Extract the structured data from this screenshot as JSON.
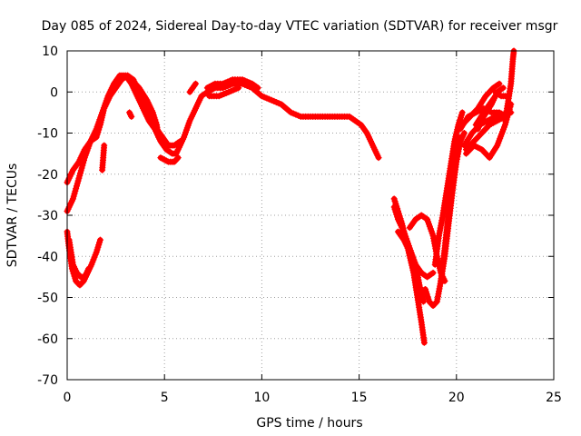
{
  "chart_data": {
    "type": "scatter",
    "title": "Day 085 of 2024, Sidereal Day-to-day VTEC variation (SDTVAR) for receiver msgr",
    "xlabel": "GPS time / hours",
    "ylabel": "SDTVAR / TECUs",
    "xlim": [
      0,
      25
    ],
    "ylim": [
      -70,
      10
    ],
    "xticks": [
      0,
      5,
      10,
      15,
      20,
      25
    ],
    "yticks": [
      10,
      0,
      -10,
      -20,
      -30,
      -40,
      -50,
      -60,
      -70
    ],
    "grid": true,
    "marker": "plus",
    "color": "#ff0000",
    "series": [
      {
        "points": [
          [
            0.0,
            -29
          ],
          [
            0.3,
            -26
          ],
          [
            0.6,
            -21
          ],
          [
            0.9,
            -16
          ],
          [
            1.2,
            -12
          ],
          [
            1.5,
            -9
          ],
          [
            1.8,
            -5
          ],
          [
            2.1,
            -1
          ],
          [
            2.4,
            2
          ],
          [
            2.7,
            4
          ],
          [
            3.0,
            4
          ],
          [
            3.3,
            2
          ],
          [
            3.6,
            -1
          ],
          [
            3.9,
            -4
          ],
          [
            4.2,
            -7
          ],
          [
            4.5,
            -9
          ],
          [
            4.8,
            -12
          ],
          [
            5.1,
            -14
          ],
          [
            5.4,
            -15
          ],
          [
            5.6,
            -15
          ],
          [
            5.8,
            -13
          ],
          [
            6.0,
            -11
          ],
          [
            6.3,
            -7
          ],
          [
            6.6,
            -4
          ],
          [
            6.9,
            -1
          ],
          [
            7.2,
            0
          ],
          [
            7.6,
            1
          ],
          [
            8.0,
            1
          ],
          [
            8.5,
            2
          ],
          [
            9.0,
            2
          ],
          [
            9.5,
            1
          ],
          [
            10.0,
            -1
          ],
          [
            10.5,
            -2
          ],
          [
            11.0,
            -3
          ],
          [
            11.5,
            -5
          ],
          [
            12.0,
            -6
          ],
          [
            12.5,
            -6
          ],
          [
            13.0,
            -6
          ],
          [
            13.5,
            -6
          ],
          [
            14.0,
            -6
          ],
          [
            14.5,
            -6
          ],
          [
            14.8,
            -7
          ],
          [
            15.1,
            -8
          ],
          [
            15.4,
            -10
          ],
          [
            15.7,
            -13
          ],
          [
            16.0,
            -16
          ]
        ]
      },
      {
        "points": [
          [
            0.0,
            -22
          ],
          [
            0.3,
            -19
          ],
          [
            0.6,
            -17
          ],
          [
            0.9,
            -14
          ],
          [
            1.2,
            -12
          ],
          [
            1.5,
            -11
          ],
          [
            1.7,
            -8
          ],
          [
            1.9,
            -4
          ],
          [
            2.2,
            -1
          ],
          [
            2.5,
            1
          ],
          [
            2.8,
            3
          ],
          [
            3.1,
            4
          ],
          [
            3.4,
            3
          ],
          [
            3.7,
            0
          ],
          [
            4.0,
            -3
          ],
          [
            4.3,
            -6
          ],
          [
            4.6,
            -9
          ],
          [
            4.9,
            -11
          ],
          [
            5.2,
            -13
          ],
          [
            5.5,
            -13
          ],
          [
            5.8,
            -12
          ]
        ]
      },
      {
        "points": [
          [
            0.0,
            -34
          ],
          [
            0.1,
            -38
          ],
          [
            0.25,
            -43
          ],
          [
            0.45,
            -46
          ],
          [
            0.65,
            -47
          ],
          [
            0.85,
            -46
          ],
          [
            1.05,
            -44
          ],
          [
            1.25,
            -42
          ],
          [
            1.5,
            -39
          ],
          [
            1.7,
            -36
          ]
        ]
      },
      {
        "points": [
          [
            0.1,
            -36
          ],
          [
            0.3,
            -42
          ],
          [
            0.5,
            -44
          ],
          [
            0.7,
            -45
          ],
          [
            0.9,
            -45
          ],
          [
            1.1,
            -43
          ]
        ]
      },
      {
        "points": [
          [
            1.8,
            -19
          ],
          [
            1.85,
            -16
          ],
          [
            1.9,
            -13
          ]
        ]
      },
      {
        "points": [
          [
            3.2,
            -5
          ],
          [
            3.3,
            -6
          ]
        ]
      },
      {
        "points": [
          [
            3.3,
            3
          ],
          [
            3.7,
            1
          ],
          [
            4.1,
            -2
          ],
          [
            4.4,
            -5
          ],
          [
            4.6,
            -8
          ],
          [
            4.7,
            -11
          ]
        ]
      },
      {
        "points": [
          [
            4.8,
            -16
          ],
          [
            5.2,
            -17
          ],
          [
            5.5,
            -17
          ],
          [
            5.7,
            -16
          ]
        ]
      },
      {
        "points": [
          [
            6.3,
            0
          ],
          [
            6.6,
            2
          ]
        ]
      },
      {
        "points": [
          [
            7.2,
            1
          ],
          [
            7.6,
            2
          ],
          [
            8.0,
            2
          ],
          [
            8.5,
            3
          ],
          [
            9.0,
            3
          ],
          [
            9.5,
            2
          ],
          [
            9.8,
            1
          ]
        ]
      },
      {
        "points": [
          [
            7.3,
            -1
          ],
          [
            7.8,
            -1
          ],
          [
            8.3,
            0
          ],
          [
            8.8,
            1
          ]
        ]
      },
      {
        "points": [
          [
            16.8,
            -26
          ],
          [
            17.2,
            -32
          ],
          [
            17.5,
            -38
          ],
          [
            17.8,
            -44
          ],
          [
            18.0,
            -50
          ],
          [
            18.2,
            -56
          ],
          [
            18.35,
            -61
          ]
        ]
      },
      {
        "points": [
          [
            16.8,
            -28
          ],
          [
            17.0,
            -31
          ],
          [
            17.3,
            -34
          ],
          [
            17.6,
            -38
          ],
          [
            17.9,
            -42
          ],
          [
            18.1,
            -47
          ],
          [
            18.3,
            -51
          ]
        ]
      },
      {
        "points": [
          [
            17.0,
            -34
          ],
          [
            17.3,
            -36
          ],
          [
            17.6,
            -39
          ],
          [
            17.9,
            -42
          ],
          [
            18.2,
            -44
          ],
          [
            18.5,
            -45
          ],
          [
            18.8,
            -44
          ]
        ]
      },
      {
        "points": [
          [
            17.6,
            -33
          ],
          [
            17.9,
            -31
          ],
          [
            18.2,
            -30
          ],
          [
            18.5,
            -31
          ],
          [
            18.8,
            -35
          ],
          [
            19.0,
            -40
          ],
          [
            19.2,
            -44
          ],
          [
            19.4,
            -46
          ]
        ]
      },
      {
        "points": [
          [
            18.4,
            -48
          ],
          [
            18.6,
            -51
          ],
          [
            18.8,
            -52
          ],
          [
            19.0,
            -51
          ],
          [
            19.2,
            -46
          ],
          [
            19.4,
            -38
          ],
          [
            19.6,
            -29
          ],
          [
            19.8,
            -22
          ],
          [
            20.0,
            -16
          ],
          [
            20.2,
            -11
          ]
        ]
      },
      {
        "points": [
          [
            18.9,
            -42
          ],
          [
            19.1,
            -35
          ],
          [
            19.3,
            -30
          ],
          [
            19.5,
            -24
          ],
          [
            19.7,
            -18
          ],
          [
            19.9,
            -12
          ],
          [
            20.1,
            -8
          ],
          [
            20.3,
            -5
          ]
        ]
      },
      {
        "points": [
          [
            19.2,
            -46
          ],
          [
            19.4,
            -40
          ],
          [
            19.6,
            -32
          ],
          [
            19.8,
            -24
          ],
          [
            20.0,
            -17
          ],
          [
            20.2,
            -12
          ],
          [
            20.4,
            -10
          ]
        ]
      },
      {
        "points": [
          [
            20.2,
            -9
          ],
          [
            20.6,
            -6
          ],
          [
            21.0,
            -5
          ],
          [
            21.4,
            -4
          ],
          [
            21.8,
            -5
          ],
          [
            22.2,
            -5
          ],
          [
            22.6,
            -6
          ]
        ]
      },
      {
        "points": [
          [
            20.4,
            -13
          ],
          [
            20.8,
            -10
          ],
          [
            21.2,
            -8
          ],
          [
            21.6,
            -7
          ],
          [
            22.0,
            -6
          ],
          [
            22.4,
            -6
          ],
          [
            22.8,
            -5
          ]
        ]
      },
      {
        "points": [
          [
            20.5,
            -14
          ],
          [
            20.9,
            -12
          ],
          [
            21.3,
            -10
          ],
          [
            21.7,
            -8
          ],
          [
            22.1,
            -7
          ],
          [
            22.5,
            -6
          ]
        ]
      },
      {
        "points": [
          [
            20.5,
            -15
          ],
          [
            20.9,
            -13
          ],
          [
            21.3,
            -14
          ],
          [
            21.7,
            -16
          ],
          [
            22.1,
            -13
          ],
          [
            22.5,
            -8
          ],
          [
            22.8,
            -3
          ]
        ]
      },
      {
        "points": [
          [
            21.0,
            -8
          ],
          [
            21.4,
            -5
          ],
          [
            21.7,
            -3
          ],
          [
            22.0,
            -1
          ]
        ]
      },
      {
        "points": [
          [
            20.3,
            -8
          ],
          [
            20.7,
            -6
          ],
          [
            21.1,
            -4
          ],
          [
            21.5,
            -1
          ],
          [
            21.9,
            1
          ],
          [
            22.2,
            2
          ]
        ]
      },
      {
        "points": [
          [
            21.1,
            -9
          ],
          [
            21.4,
            -6
          ],
          [
            21.8,
            -3
          ],
          [
            22.1,
            0
          ],
          [
            22.4,
            1
          ]
        ]
      },
      {
        "points": [
          [
            22.0,
            0
          ],
          [
            22.3,
            -1
          ],
          [
            22.6,
            -1
          ]
        ]
      },
      {
        "points": [
          [
            22.5,
            -7
          ],
          [
            22.6,
            -4
          ],
          [
            22.7,
            -1
          ],
          [
            22.8,
            2
          ],
          [
            22.85,
            5
          ],
          [
            22.9,
            8
          ],
          [
            22.95,
            10
          ]
        ]
      }
    ]
  }
}
